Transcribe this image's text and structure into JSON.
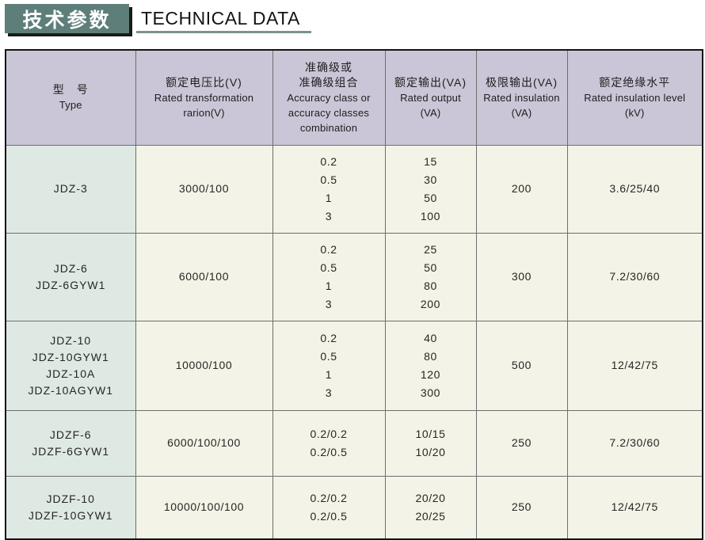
{
  "page_header": {
    "title_zh": "技术参数",
    "title_en": "TECHNICAL DATA"
  },
  "colors": {
    "title_bg": "#5e7e79",
    "title_shadow": "#1b1b1b",
    "underline": "#7c928e",
    "header_bg": "#cac6d7",
    "type_col_bg": "#dfe9e4",
    "cell_bg": "#f3f3e7",
    "grid_line": "#6e6e6e",
    "outer_border": "#141414"
  },
  "table": {
    "header": [
      [
        "型　号",
        "Type"
      ],
      [
        "额定电压比(V)",
        "Rated transformation",
        "rarion(V)"
      ],
      [
        "准确级或",
        "准确级组合",
        "Accuracy class or",
        "accuracy classes",
        "combination"
      ],
      [
        "额定输出(VA)",
        "Rated output",
        "(VA)"
      ],
      [
        "极限输出(VA)",
        "Rated insulation",
        "(VA)"
      ],
      [
        "额定绝缘水平",
        "Rated insulation level",
        "(kV)"
      ]
    ],
    "rows": [
      {
        "type": [
          "JDZ-3"
        ],
        "voltage_ratio": [
          "3000/100"
        ],
        "accuracy_class": [
          "0.2",
          "0.5",
          "1",
          "3"
        ],
        "rated_output": [
          "15",
          "30",
          "50",
          "100"
        ],
        "limit_output": [
          "200"
        ],
        "insulation_level": [
          "3.6/25/40"
        ]
      },
      {
        "type": [
          "JDZ-6",
          "JDZ-6GYW1"
        ],
        "voltage_ratio": [
          "6000/100"
        ],
        "accuracy_class": [
          "0.2",
          "0.5",
          "1",
          "3"
        ],
        "rated_output": [
          "25",
          "50",
          "80",
          "200"
        ],
        "limit_output": [
          "300"
        ],
        "insulation_level": [
          "7.2/30/60"
        ]
      },
      {
        "type": [
          "JDZ-10",
          "JDZ-10GYW1",
          "JDZ-10A",
          "JDZ-10AGYW1"
        ],
        "voltage_ratio": [
          "10000/100"
        ],
        "accuracy_class": [
          "0.2",
          "0.5",
          "1",
          "3"
        ],
        "rated_output": [
          "40",
          "80",
          "120",
          "300"
        ],
        "limit_output": [
          "500"
        ],
        "insulation_level": [
          "12/42/75"
        ]
      },
      {
        "type": [
          "JDZF-6",
          "JDZF-6GYW1"
        ],
        "voltage_ratio": [
          "6000/100/100"
        ],
        "accuracy_class": [
          "0.2/0.2",
          "0.2/0.5"
        ],
        "rated_output": [
          "10/15",
          "10/20"
        ],
        "limit_output": [
          "250"
        ],
        "insulation_level": [
          "7.2/30/60"
        ]
      },
      {
        "type": [
          "JDZF-10",
          "JDZF-10GYW1"
        ],
        "voltage_ratio": [
          "10000/100/100"
        ],
        "accuracy_class": [
          "0.2/0.2",
          "0.2/0.5"
        ],
        "rated_output": [
          "20/20",
          "20/25"
        ],
        "limit_output": [
          "250"
        ],
        "insulation_level": [
          "12/42/75"
        ]
      }
    ]
  }
}
